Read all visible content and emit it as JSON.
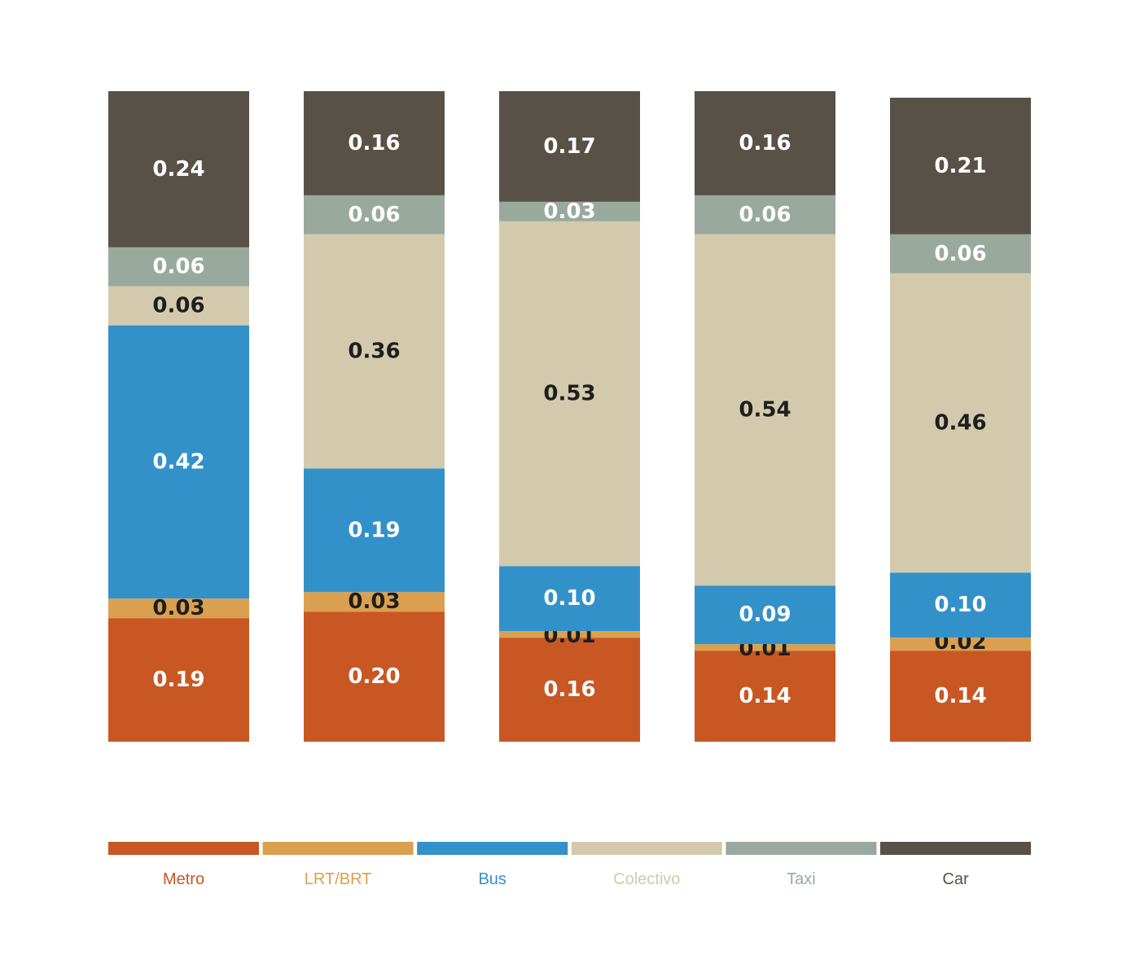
{
  "chart_data": {
    "type": "bar",
    "stacked": true,
    "title": "",
    "xlabel": "",
    "ylabel": "",
    "ylim": [
      0,
      1
    ],
    "grid": false,
    "legend_position": "bottom",
    "categories": [
      "",
      "",
      "",
      "",
      ""
    ],
    "series": [
      {
        "name": "Metro",
        "color": "#c85723",
        "label_color": "#ffffff",
        "values": [
          0.19,
          0.2,
          0.16,
          0.14,
          0.14
        ]
      },
      {
        "name": "LRT/BRT",
        "color": "#dba04f",
        "label_color": "#1e1e1e",
        "values": [
          0.03,
          0.03,
          0.01,
          0.01,
          0.02
        ]
      },
      {
        "name": "Bus",
        "color": "#3391c9",
        "label_color": "#ffffff",
        "values": [
          0.42,
          0.19,
          0.1,
          0.09,
          0.1
        ]
      },
      {
        "name": "Colectivo",
        "color": "#d3caad",
        "label_color": "#1e1e1e",
        "values": [
          0.06,
          0.36,
          0.53,
          0.54,
          0.46
        ]
      },
      {
        "name": "Taxi",
        "color": "#99a99e",
        "label_color": "#ffffff",
        "values": [
          0.06,
          0.06,
          0.03,
          0.06,
          0.06
        ]
      },
      {
        "name": "Car",
        "color": "#585148",
        "label_color": "#ffffff",
        "values": [
          0.24,
          0.16,
          0.17,
          0.16,
          0.21
        ]
      }
    ],
    "data_labels": [
      [
        "0.19",
        "0.20",
        "0.16",
        "0.14",
        "0.14"
      ],
      [
        "0.03",
        "0.03",
        "0.01",
        "0.01",
        "0.02"
      ],
      [
        "0.42",
        "0.19",
        "0.10",
        "0.09",
        "0.10"
      ],
      [
        "0.06",
        "0.36",
        "0.53",
        "0.54",
        "0.46"
      ],
      [
        "0.06",
        "0.06",
        "0.03",
        "0.06",
        "0.06"
      ],
      [
        "0.24",
        "0.16",
        "0.17",
        "0.16",
        "0.21"
      ]
    ]
  }
}
